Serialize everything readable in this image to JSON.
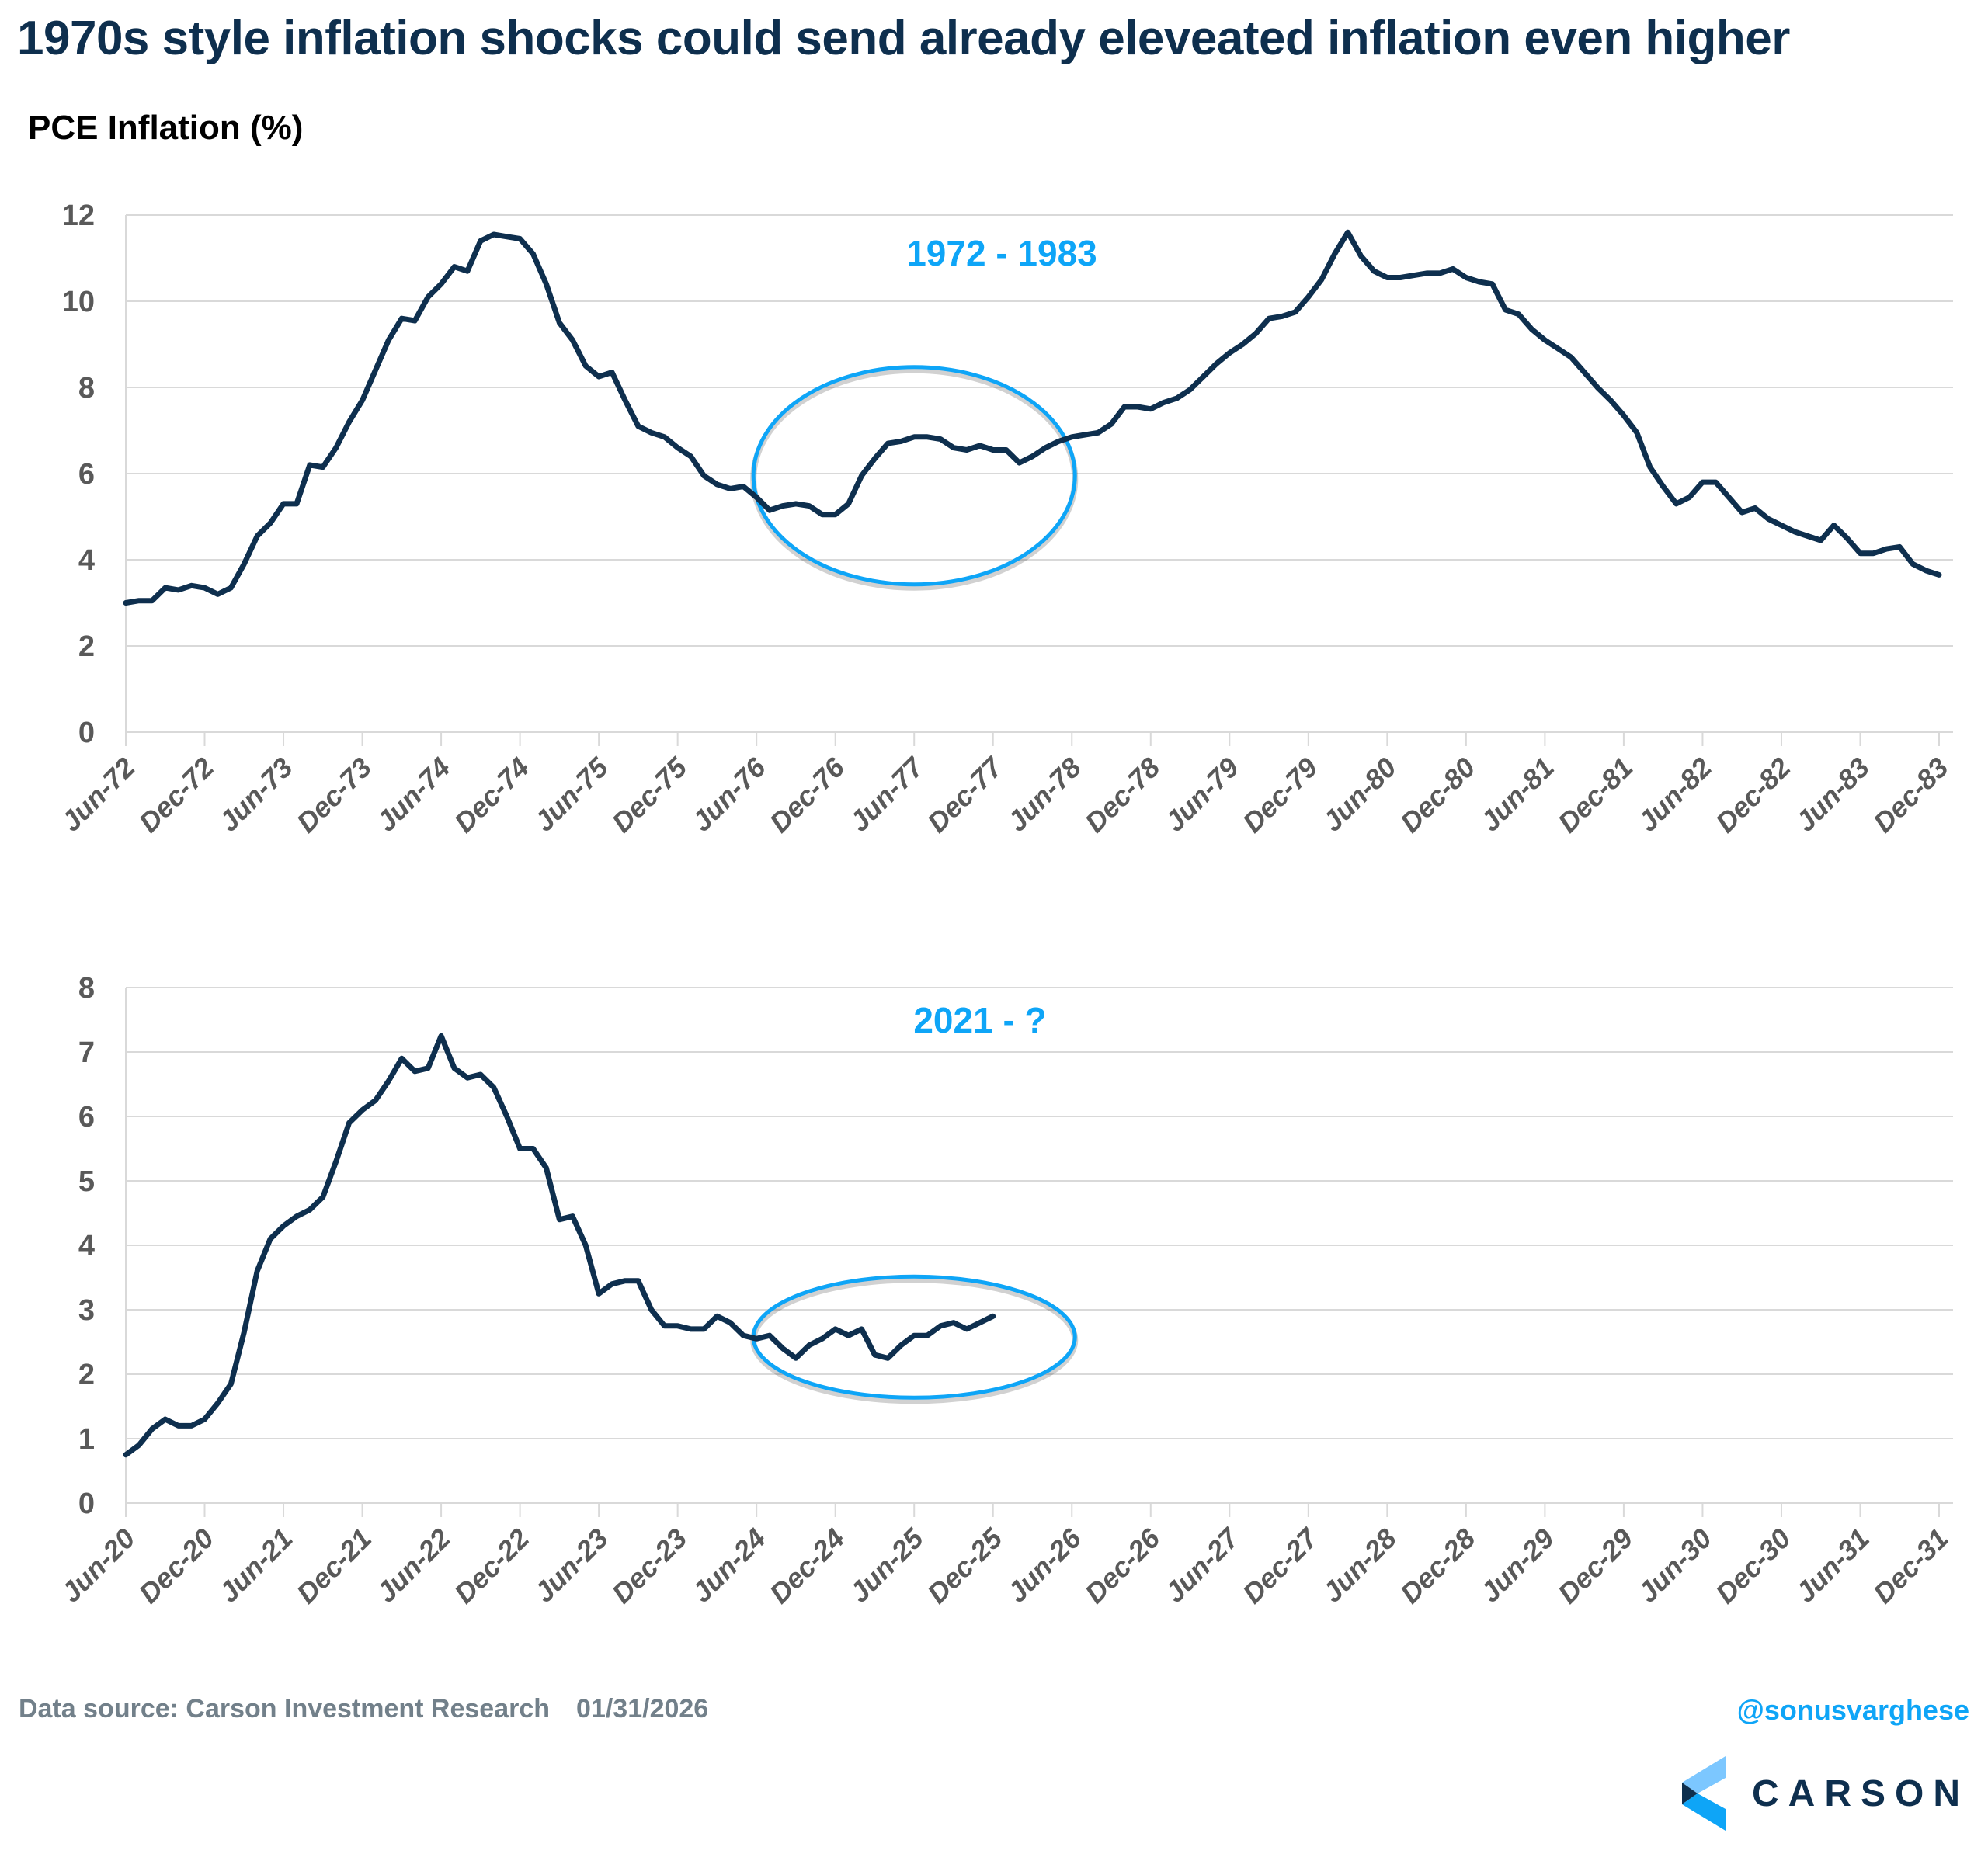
{
  "header": {
    "title": "1970s style inflation shocks could send already eleveated inflation even higher",
    "ylabel": "PCE Inflation (%)"
  },
  "footer": {
    "source": "Data source: Carson Investment Research",
    "date": "01/31/2026",
    "handle": "@sonusvarghese",
    "logo_text": "CARSON",
    "logo_icon": "carson-chevron-logo-icon"
  },
  "colors": {
    "line": "#0e2f4e",
    "accent": "#0ea5f7",
    "grid": "#d9d9d9",
    "tick_text": "#595959"
  },
  "chart_data": [
    {
      "type": "line",
      "title": "1972 - 1983",
      "xlabel": "",
      "ylabel": "PCE Inflation (%)",
      "ylim": [
        0,
        12
      ],
      "yticks": [
        "0",
        "2",
        "4",
        "6",
        "8",
        "10",
        "12"
      ],
      "ytick_values": [
        0,
        2,
        4,
        6,
        8,
        10,
        12
      ],
      "x_start": "Jun-72",
      "x_end": "Dec-83",
      "frequency": "monthly",
      "xticks": [
        "Jun-72",
        "Dec-72",
        "Jun-73",
        "Dec-73",
        "Jun-74",
        "Dec-74",
        "Jun-75",
        "Dec-75",
        "Jun-76",
        "Dec-76",
        "Jun-77",
        "Dec-77",
        "Jun-78",
        "Dec-78",
        "Jun-79",
        "Dec-79",
        "Jun-80",
        "Dec-80",
        "Jun-81",
        "Dec-81",
        "Jun-82",
        "Dec-82",
        "Jun-83",
        "Dec-83"
      ],
      "grid": true,
      "annotation_ellipse": {
        "from": "Jun-76",
        "to": "Jun-78",
        "label": "highlighted period"
      },
      "series": [
        {
          "name": "PCE Inflation 1972-1983",
          "values": [
            3.0,
            3.05,
            3.05,
            3.35,
            3.3,
            3.4,
            3.35,
            3.2,
            3.35,
            3.9,
            4.55,
            4.85,
            5.3,
            5.3,
            6.2,
            6.15,
            6.6,
            7.2,
            7.7,
            8.4,
            9.1,
            9.6,
            9.55,
            10.1,
            10.4,
            10.8,
            10.7,
            11.4,
            11.55,
            11.5,
            11.45,
            11.1,
            10.4,
            9.5,
            9.1,
            8.5,
            8.25,
            8.35,
            7.7,
            7.1,
            6.95,
            6.85,
            6.6,
            6.4,
            5.95,
            5.75,
            5.65,
            5.7,
            5.45,
            5.15,
            5.25,
            5.3,
            5.25,
            5.05,
            5.05,
            5.3,
            5.95,
            6.35,
            6.7,
            6.75,
            6.85,
            6.85,
            6.8,
            6.6,
            6.55,
            6.65,
            6.55,
            6.55,
            6.25,
            6.4,
            6.6,
            6.75,
            6.85,
            6.9,
            6.95,
            7.15,
            7.55,
            7.55,
            7.5,
            7.65,
            7.75,
            7.95,
            8.25,
            8.55,
            8.8,
            9.0,
            9.25,
            9.6,
            9.65,
            9.75,
            10.1,
            10.5,
            11.1,
            11.6,
            11.05,
            10.7,
            10.55,
            10.55,
            10.6,
            10.65,
            10.65,
            10.75,
            10.55,
            10.45,
            10.4,
            9.8,
            9.7,
            9.35,
            9.1,
            8.9,
            8.7,
            8.35,
            8.0,
            7.7,
            7.35,
            6.95,
            6.15,
            5.7,
            5.3,
            5.45,
            5.8,
            5.8,
            5.45,
            5.1,
            5.2,
            4.95,
            4.8,
            4.65,
            4.55,
            4.45,
            4.8,
            4.5,
            4.15,
            4.15,
            4.25,
            4.3,
            3.9,
            3.75,
            3.65
          ]
        }
      ]
    },
    {
      "type": "line",
      "title": "2021 - ?",
      "xlabel": "",
      "ylabel": "PCE Inflation (%)",
      "ylim": [
        0,
        8
      ],
      "yticks": [
        "0",
        "1",
        "2",
        "3",
        "4",
        "5",
        "6",
        "7",
        "8"
      ],
      "ytick_values": [
        0,
        1,
        2,
        3,
        4,
        5,
        6,
        7,
        8
      ],
      "x_start": "Jun-20",
      "x_end": "Dec-31",
      "frequency": "monthly",
      "xticks": [
        "Jun-20",
        "Dec-20",
        "Jun-21",
        "Dec-21",
        "Jun-22",
        "Dec-22",
        "Jun-23",
        "Dec-23",
        "Jun-24",
        "Dec-24",
        "Jun-25",
        "Dec-25",
        "Jun-26",
        "Dec-26",
        "Jun-27",
        "Dec-27",
        "Jun-28",
        "Dec-28",
        "Jun-29",
        "Dec-29",
        "Jun-30",
        "Dec-30",
        "Jun-31",
        "Dec-31"
      ],
      "grid": true,
      "annotation_ellipse": {
        "from": "Jun-24",
        "to": "Jun-26",
        "label": "highlighted period"
      },
      "series": [
        {
          "name": "PCE Inflation 2020-2025",
          "values": [
            0.75,
            0.9,
            1.15,
            1.3,
            1.2,
            1.2,
            1.3,
            1.55,
            1.85,
            2.65,
            3.6,
            4.1,
            4.3,
            4.45,
            4.55,
            4.75,
            5.3,
            5.9,
            6.1,
            6.25,
            6.55,
            6.9,
            6.7,
            6.75,
            7.25,
            6.75,
            6.6,
            6.65,
            6.45,
            6.0,
            5.5,
            5.5,
            5.2,
            4.4,
            4.45,
            4.0,
            3.25,
            3.4,
            3.45,
            3.45,
            3.0,
            2.75,
            2.75,
            2.7,
            2.7,
            2.9,
            2.8,
            2.6,
            2.55,
            2.6,
            2.4,
            2.25,
            2.45,
            2.55,
            2.7,
            2.6,
            2.7,
            2.3,
            2.25,
            2.45,
            2.6,
            2.6,
            2.75,
            2.8,
            2.7,
            2.8,
            2.9
          ]
        }
      ]
    }
  ]
}
